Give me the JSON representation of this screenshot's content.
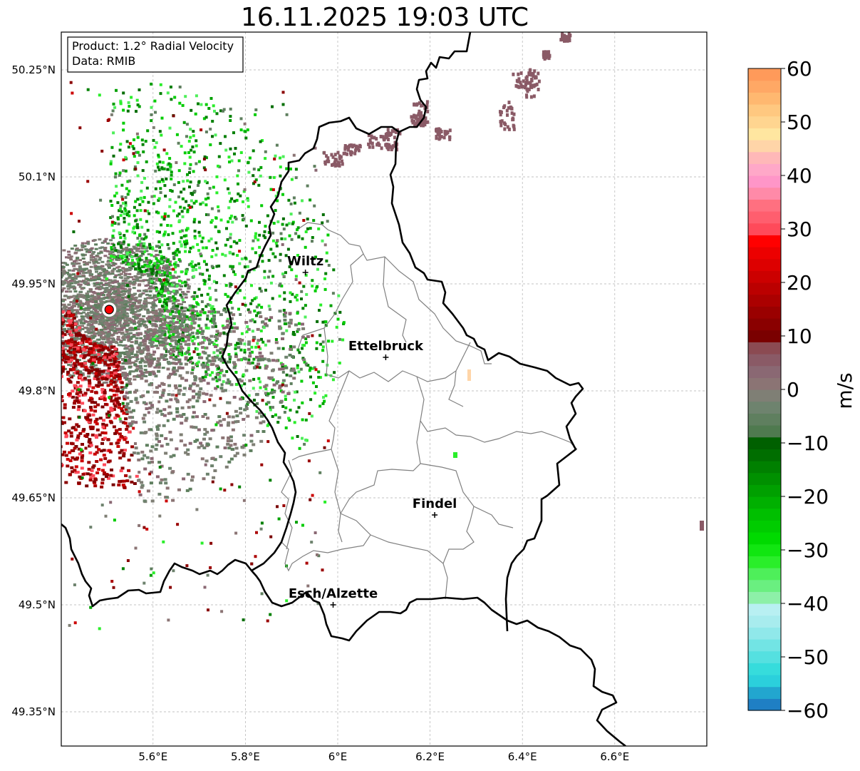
{
  "title": "16.11.2025 19:03 UTC",
  "info_box": {
    "product": "Product: 1.2° Radial Velocity",
    "data_source": "Data: RMIB"
  },
  "lat_labels": [
    {
      "value": 50.25,
      "label": "50.25°N"
    },
    {
      "value": 50.1,
      "label": "50.1°N"
    },
    {
      "value": 49.95,
      "label": "49.95°N"
    },
    {
      "value": 49.8,
      "label": "49.8°N"
    },
    {
      "value": 49.65,
      "label": "49.65°N"
    },
    {
      "value": 49.5,
      "label": "49.5°N"
    },
    {
      "value": 49.35,
      "label": "49.35°N"
    }
  ],
  "lon_labels": [
    {
      "value": 5.6,
      "label": "5.6°E"
    },
    {
      "value": 5.8,
      "label": "5.8°E"
    },
    {
      "value": 6.0,
      "label": "6°E"
    },
    {
      "value": 6.2,
      "label": "6.2°E"
    },
    {
      "value": 6.4,
      "label": "6.4°E"
    },
    {
      "value": 6.6,
      "label": "6.6°E"
    }
  ],
  "cities": [
    {
      "name": "Wiltz",
      "lon": 5.93,
      "lat": 49.966
    },
    {
      "name": "Ettelbruck",
      "lon": 6.104,
      "lat": 49.847
    },
    {
      "name": "Findel",
      "lon": 6.21,
      "lat": 49.626
    },
    {
      "name": "Esch/Alzette",
      "lon": 5.99,
      "lat": 49.5
    }
  ],
  "radar_site": {
    "lon": 5.505,
    "lat": 49.914
  },
  "colorbar": {
    "unit": "m/s",
    "min": -60,
    "max": 60,
    "ticks": [
      {
        "value": 60,
        "label": "60"
      },
      {
        "value": 50,
        "label": "50"
      },
      {
        "value": 40,
        "label": "40"
      },
      {
        "value": 30,
        "label": "30"
      },
      {
        "value": 20,
        "label": "20"
      },
      {
        "value": 10,
        "label": "10"
      },
      {
        "value": 0,
        "label": "0"
      },
      {
        "value": -10,
        "label": "−10"
      },
      {
        "value": -20,
        "label": "−20"
      },
      {
        "value": -30,
        "label": "−30"
      },
      {
        "value": -40,
        "label": "−40"
      },
      {
        "value": -50,
        "label": "−50"
      },
      {
        "value": -60,
        "label": "−60"
      }
    ],
    "colors": [
      "#1f7fc4",
      "#22a6cf",
      "#2bd0dc",
      "#36dcdc",
      "#55e0e0",
      "#72e4e4",
      "#90e8ea",
      "#a8ecee",
      "#b8f0f2",
      "#8df0a8",
      "#6aef80",
      "#4eef5a",
      "#2aee2a",
      "#11e611",
      "#00da00",
      "#00cc00",
      "#00bf00",
      "#00b000",
      "#00a000",
      "#009000",
      "#008000",
      "#006e00",
      "#006000",
      "#4f7a4f",
      "#5f7f5f",
      "#6e836e",
      "#7f7f75",
      "#8b7474",
      "#8a6873",
      "#8a5a66",
      "#8b4a52",
      "#7a0000",
      "#8a0000",
      "#9a0000",
      "#ab0000",
      "#bb0000",
      "#cc0000",
      "#dd0000",
      "#ec0000",
      "#ff0000",
      "#ff4a5a",
      "#ff5e6e",
      "#ff7080",
      "#ff8aa8",
      "#ff96c8",
      "#ffa8c8",
      "#ffb8b8",
      "#ffd5a8",
      "#ffe6a0",
      "#ffd590",
      "#ffc880",
      "#ffb870",
      "#ffa865",
      "#ff9a5a"
    ]
  }
}
